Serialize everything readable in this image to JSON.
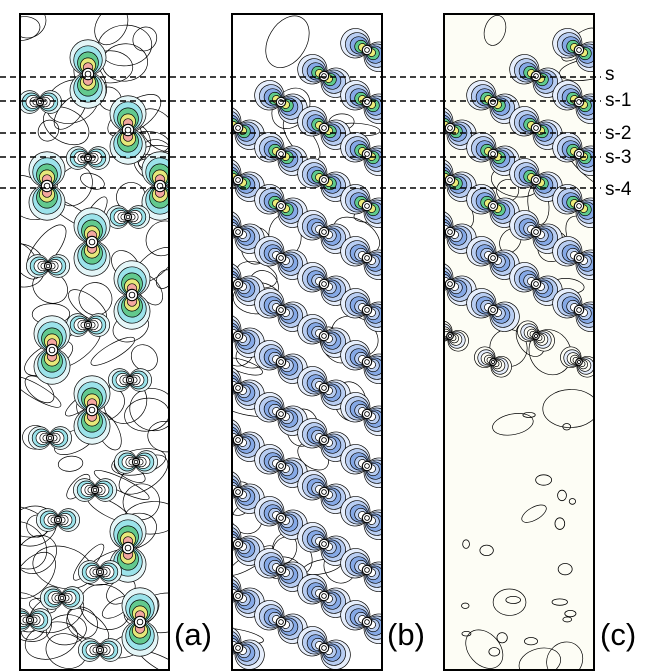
{
  "panels": [
    {
      "id": "a",
      "label": "(a)",
      "style": "mixed",
      "palette": [
        "#f4a7a0",
        "#f4a7a0",
        "#e6e87a",
        "#62c98e",
        "#9be3ea",
        "#e4f6f8"
      ]
    },
    {
      "id": "b",
      "label": "(b)",
      "style": "negative",
      "palette": [
        "#ef8e82",
        "#ecec7a",
        "#5fca8c",
        "#86a9e6",
        "#b8cdf2",
        "#e6eefc"
      ]
    },
    {
      "id": "c",
      "label": "(c)",
      "style": "decay",
      "palette": [
        "#ef8e82",
        "#ecec7a",
        "#5fca8c",
        "#86a9e6",
        "#b8cdf2",
        "#e6eefc"
      ]
    }
  ],
  "layers": [
    {
      "label": "s"
    },
    {
      "label": "s-1"
    },
    {
      "label": "s-2"
    },
    {
      "label": "s-3"
    },
    {
      "label": "s-4"
    }
  ],
  "colors": {
    "frame": "#000000",
    "contour_line": "#000000",
    "panel_c_background": "#fdfdf5",
    "dashed_line": "#000000"
  }
}
